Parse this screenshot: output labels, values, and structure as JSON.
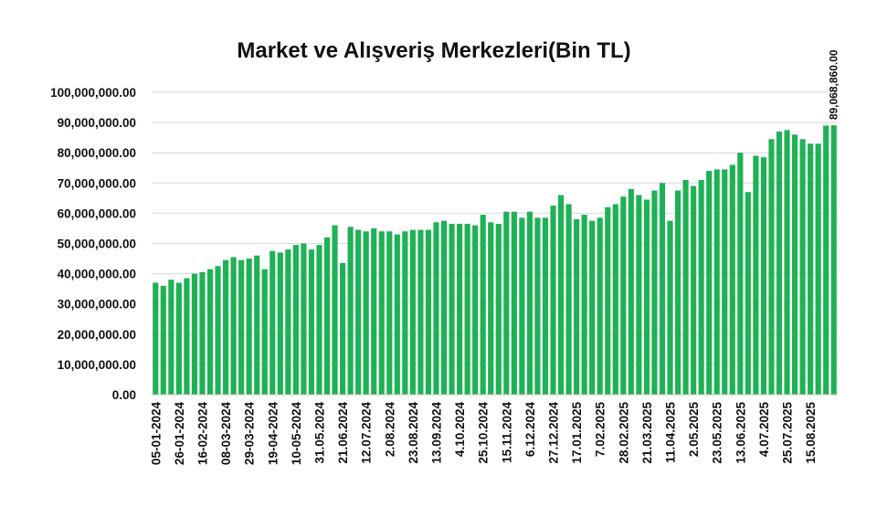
{
  "chart_data": {
    "type": "bar",
    "title": "Market ve Alışveriş Merkezleri(Bin TL)",
    "xlabel": "",
    "ylabel": "",
    "ylim": [
      0,
      100000000
    ],
    "yticks": [
      "0.00",
      "10,000,000.00",
      "20,000,000.00",
      "30,000,000.00",
      "40,000,000.00",
      "50,000,000.00",
      "60,000,000.00",
      "70,000,000.00",
      "80,000,000.00",
      "90,000,000.00",
      "100,000,000.00"
    ],
    "grid": true,
    "bar_color": "#1fb156",
    "x_tick_labels": [
      "05-01-2024",
      "26-01-2024",
      "16-02-2024",
      "08-03-2024",
      "29-03-2024",
      "19-04-2024",
      "10-05-2024",
      "31.05.2024",
      "21.06.2024",
      "12.07.2024",
      "2.08.2024",
      "23.08.2024",
      "13.09.2024",
      "4.10.2024",
      "25.10.2024",
      "15.11.2024",
      "6.12.2024",
      "27.12.2024",
      "17.01.2025",
      "7.02.2025",
      "28.02.2025",
      "21.03.2025",
      "11.04.2025",
      "2.05.2025",
      "23.05.2025",
      "13.06.2025",
      "4.07.2025",
      "25.07.2025",
      "15.08.2025"
    ],
    "values": [
      37000000,
      36000000,
      38000000,
      37000000,
      38500000,
      40000000,
      40500000,
      41500000,
      42500000,
      44500000,
      45500000,
      44500000,
      45000000,
      46000000,
      41500000,
      47500000,
      47000000,
      48000000,
      49500000,
      50000000,
      48000000,
      49500000,
      52000000,
      56000000,
      43500000,
      55500000,
      54500000,
      54000000,
      55000000,
      54000000,
      54000000,
      53000000,
      54000000,
      54500000,
      54500000,
      54500000,
      57000000,
      57500000,
      56500000,
      56500000,
      56500000,
      56000000,
      59500000,
      57000000,
      56500000,
      60500000,
      60500000,
      58500000,
      60500000,
      58500000,
      58500000,
      62500000,
      66000000,
      63000000,
      58000000,
      59500000,
      57500000,
      58500000,
      62000000,
      63000000,
      65500000,
      68000000,
      66000000,
      64500000,
      67500000,
      70000000,
      57500000,
      67500000,
      71000000,
      69000000,
      71000000,
      74000000,
      74500000,
      74500000,
      76000000,
      80000000,
      67000000,
      79000000,
      78500000,
      84500000,
      87000000,
      87500000,
      86000000,
      84500000,
      83000000,
      83000000,
      89000000,
      89068860
    ],
    "data_labels": [
      {
        "index": 87,
        "text": "89,068,860.00"
      }
    ]
  }
}
